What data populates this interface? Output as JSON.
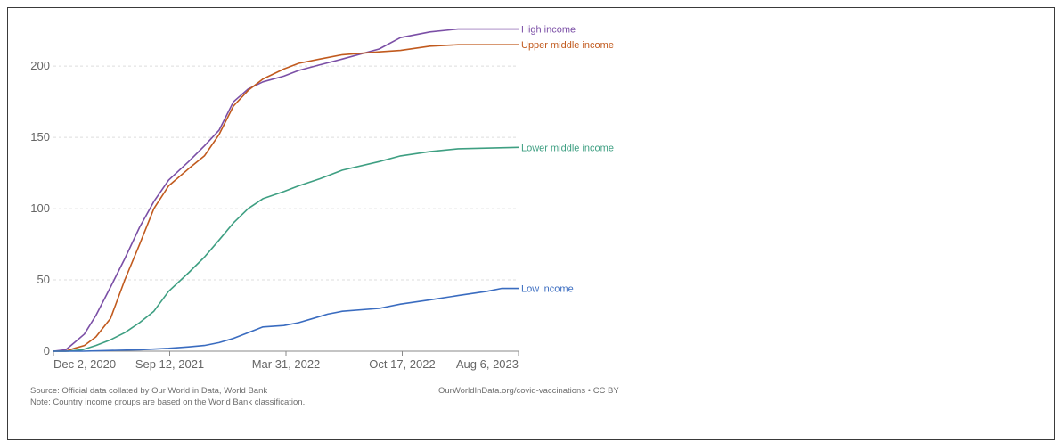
{
  "chart_data": {
    "type": "line",
    "title": "",
    "xlabel": "",
    "ylabel": "",
    "x_ticks": [
      "Dec 2, 2020",
      "Sep 12, 2021",
      "Mar 31, 2022",
      "Oct 17, 2022",
      "Aug 6, 2023"
    ],
    "xlim": [
      "2020-12-02",
      "2023-08-06"
    ],
    "y_ticks": [
      "0",
      "50",
      "100",
      "150",
      "200"
    ],
    "ylim": [
      0,
      227
    ],
    "grid": "horizontal-dashed",
    "legend": "inline-right",
    "series": [
      {
        "name": "High income",
        "color": "#7b4fa6",
        "points": [
          [
            "2020-12-02",
            0
          ],
          [
            "2020-12-28",
            1
          ],
          [
            "2021-01-15",
            6
          ],
          [
            "2021-02-05",
            12
          ],
          [
            "2021-03-01",
            25
          ],
          [
            "2021-04-01",
            45
          ],
          [
            "2021-05-01",
            65
          ],
          [
            "2021-06-01",
            87
          ],
          [
            "2021-07-01",
            105
          ],
          [
            "2021-08-01",
            120
          ],
          [
            "2021-09-12",
            133
          ],
          [
            "2021-10-15",
            144
          ],
          [
            "2021-11-15",
            155
          ],
          [
            "2021-12-15",
            175
          ],
          [
            "2022-01-15",
            184
          ],
          [
            "2022-02-15",
            189
          ],
          [
            "2022-03-31",
            193
          ],
          [
            "2022-05-01",
            197
          ],
          [
            "2022-06-15",
            201
          ],
          [
            "2022-08-01",
            205
          ],
          [
            "2022-10-17",
            212
          ],
          [
            "2022-12-01",
            220
          ],
          [
            "2023-02-01",
            224
          ],
          [
            "2023-04-01",
            226
          ],
          [
            "2023-08-06",
            226
          ]
        ]
      },
      {
        "name": "Upper middle income",
        "color": "#c15a1e",
        "points": [
          [
            "2020-12-02",
            0
          ],
          [
            "2020-12-28",
            0
          ],
          [
            "2021-01-15",
            2
          ],
          [
            "2021-02-05",
            4
          ],
          [
            "2021-03-01",
            10
          ],
          [
            "2021-04-01",
            23
          ],
          [
            "2021-05-01",
            50
          ],
          [
            "2021-06-01",
            75
          ],
          [
            "2021-07-01",
            100
          ],
          [
            "2021-08-01",
            116
          ],
          [
            "2021-09-12",
            128
          ],
          [
            "2021-10-15",
            137
          ],
          [
            "2021-11-15",
            152
          ],
          [
            "2021-12-15",
            172
          ],
          [
            "2022-01-15",
            183
          ],
          [
            "2022-02-15",
            191
          ],
          [
            "2022-03-31",
            198
          ],
          [
            "2022-05-01",
            202
          ],
          [
            "2022-06-15",
            205
          ],
          [
            "2022-08-01",
            208
          ],
          [
            "2022-10-17",
            210
          ],
          [
            "2022-12-01",
            211
          ],
          [
            "2023-02-01",
            214
          ],
          [
            "2023-04-01",
            215
          ],
          [
            "2023-08-06",
            215
          ]
        ]
      },
      {
        "name": "Lower middle income",
        "color": "#3e9f82",
        "points": [
          [
            "2020-12-02",
            0
          ],
          [
            "2021-01-01",
            0
          ],
          [
            "2021-02-01",
            1
          ],
          [
            "2021-03-01",
            4
          ],
          [
            "2021-04-01",
            8
          ],
          [
            "2021-05-01",
            13
          ],
          [
            "2021-06-01",
            20
          ],
          [
            "2021-07-01",
            28
          ],
          [
            "2021-08-01",
            42
          ],
          [
            "2021-09-12",
            55
          ],
          [
            "2021-10-15",
            66
          ],
          [
            "2021-11-15",
            78
          ],
          [
            "2021-12-15",
            90
          ],
          [
            "2022-01-15",
            100
          ],
          [
            "2022-02-15",
            107
          ],
          [
            "2022-03-31",
            112
          ],
          [
            "2022-05-01",
            116
          ],
          [
            "2022-06-15",
            121
          ],
          [
            "2022-08-01",
            127
          ],
          [
            "2022-10-17",
            133
          ],
          [
            "2022-12-01",
            137
          ],
          [
            "2023-02-01",
            140
          ],
          [
            "2023-04-01",
            142
          ],
          [
            "2023-08-06",
            143
          ]
        ]
      },
      {
        "name": "Low income",
        "color": "#3a6cc0",
        "points": [
          [
            "2020-12-02",
            0
          ],
          [
            "2021-02-01",
            0
          ],
          [
            "2021-04-01",
            0.5
          ],
          [
            "2021-06-01",
            1
          ],
          [
            "2021-08-01",
            2
          ],
          [
            "2021-09-12",
            3
          ],
          [
            "2021-10-15",
            4
          ],
          [
            "2021-11-15",
            6
          ],
          [
            "2021-12-15",
            9
          ],
          [
            "2022-01-15",
            13
          ],
          [
            "2022-02-15",
            17
          ],
          [
            "2022-03-31",
            18
          ],
          [
            "2022-05-01",
            20
          ],
          [
            "2022-06-01",
            23
          ],
          [
            "2022-07-01",
            26
          ],
          [
            "2022-08-01",
            28
          ],
          [
            "2022-10-17",
            30
          ],
          [
            "2022-12-01",
            33
          ],
          [
            "2023-02-01",
            36
          ],
          [
            "2023-04-01",
            39
          ],
          [
            "2023-06-01",
            42
          ],
          [
            "2023-07-01",
            44
          ],
          [
            "2023-08-06",
            44
          ]
        ]
      }
    ]
  },
  "footer": {
    "source": "Source: Official data collated by Our World in Data, World Bank",
    "note": "Note: Country income groups are based on the World Bank classification.",
    "credit": "OurWorldInData.org/covid-vaccinations • CC BY"
  }
}
